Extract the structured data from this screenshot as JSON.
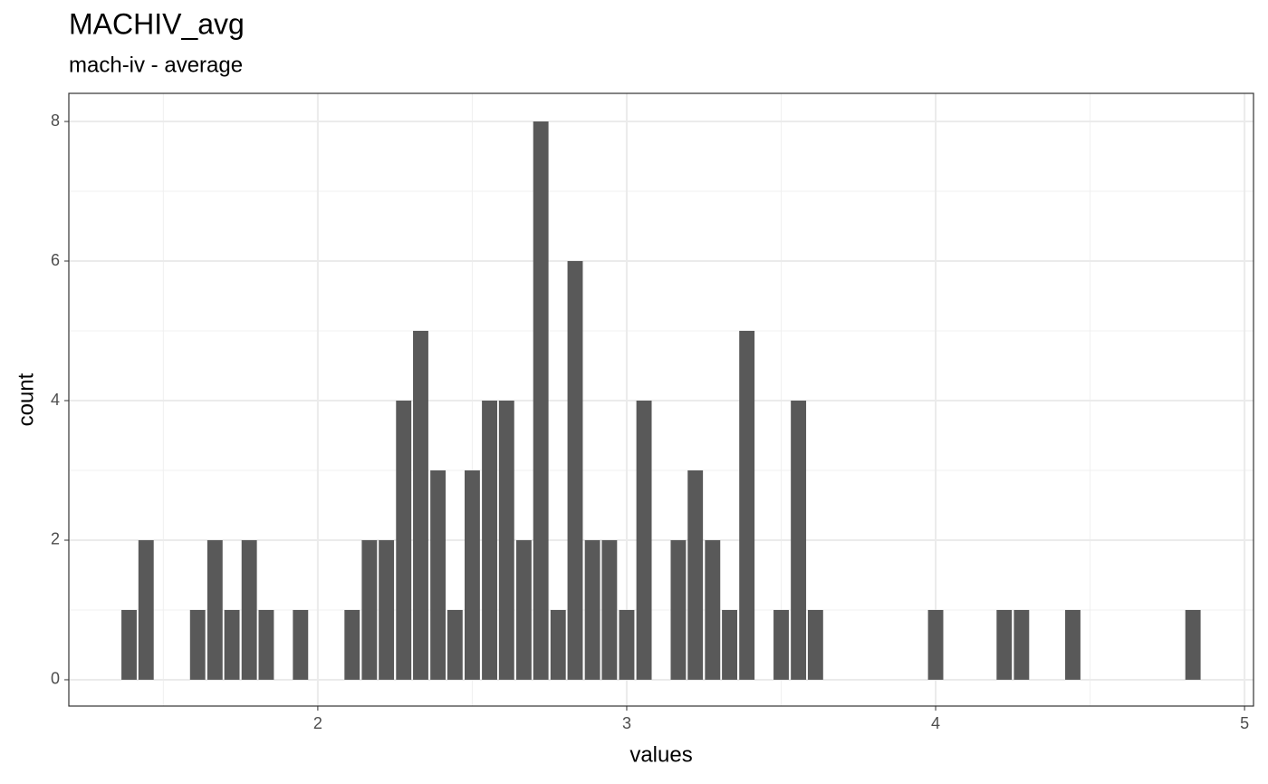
{
  "chart_data": {
    "type": "bar",
    "title": "MACHIV_avg",
    "subtitle": "mach-iv - average",
    "x_label": "values",
    "y_label": "count",
    "x": [
      1.389,
      1.444,
      1.611,
      1.667,
      1.722,
      1.778,
      1.833,
      1.944,
      2.111,
      2.167,
      2.222,
      2.278,
      2.333,
      2.389,
      2.444,
      2.5,
      2.556,
      2.611,
      2.667,
      2.722,
      2.778,
      2.833,
      2.889,
      2.944,
      3.0,
      3.056,
      3.167,
      3.222,
      3.278,
      3.333,
      3.389,
      3.5,
      3.556,
      3.611,
      4.0,
      4.222,
      4.278,
      4.444,
      4.833
    ],
    "values": [
      1,
      2,
      1,
      2,
      1,
      2,
      1,
      1,
      1,
      2,
      2,
      4,
      5,
      3,
      1,
      3,
      4,
      4,
      2,
      8,
      1,
      6,
      2,
      2,
      1,
      4,
      2,
      3,
      2,
      1,
      5,
      1,
      4,
      1,
      1,
      1,
      1,
      1,
      1
    ],
    "color": "#595959",
    "xlim": [
      1.194,
      5.029
    ],
    "ylim": [
      -0.377,
      8.403
    ],
    "xticks": [
      2,
      3,
      4,
      5
    ],
    "yticks": [
      0,
      2,
      4,
      6,
      8
    ],
    "xminor": [
      1.5,
      2.5,
      3.5,
      4.5
    ],
    "yminor": [
      1,
      3,
      5,
      7
    ],
    "grid": true
  }
}
